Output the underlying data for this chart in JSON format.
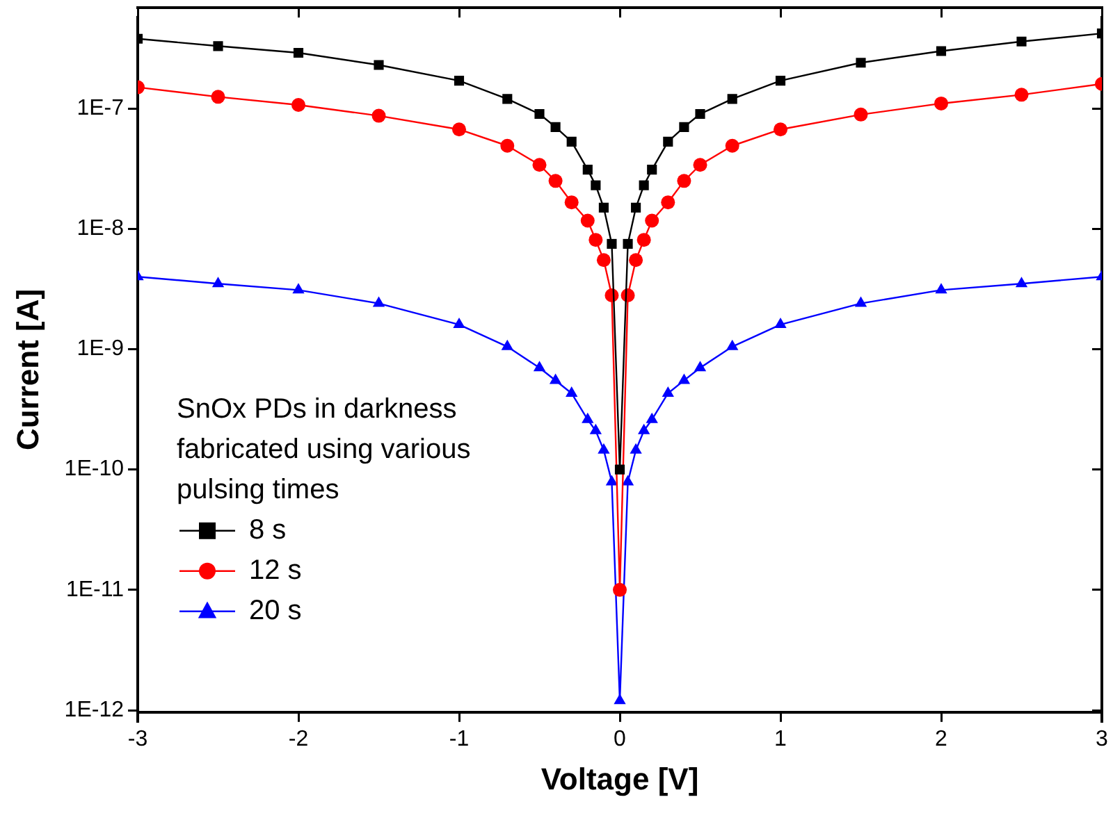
{
  "chart_data": {
    "type": "line",
    "xlabel": "Voltage [V]",
    "ylabel": "Current [A]",
    "legend_title": "SnOx PDs in darkness fabricated using various pulsing times",
    "legend": "bottom left",
    "log": "y",
    "grid": false,
    "line_style": "solid",
    "x": [
      -3,
      -2.5,
      -2,
      -1.5,
      -1,
      -0.7,
      -0.5,
      -0.4,
      -0.3,
      -0.2,
      -0.15,
      -0.1,
      -0.05,
      0,
      0.05,
      0.1,
      0.15,
      0.2,
      0.3,
      0.4,
      0.5,
      0.7,
      1,
      1.5,
      2,
      2.5,
      3
    ],
    "xlim": [
      -3,
      3
    ],
    "xticks": [
      -3,
      -2,
      -1,
      0,
      1,
      2,
      3
    ],
    "ylim": [
      8e-13,
      5.7e-07
    ],
    "yticks": [
      {
        "value": 1e-12,
        "label": "1E-12"
      },
      {
        "value": 1e-11,
        "label": "1E-11"
      },
      {
        "value": 1e-10,
        "label": "1E-10"
      },
      {
        "value": 1e-09,
        "label": "1E-9"
      },
      {
        "value": 1e-08,
        "label": "1E-8"
      },
      {
        "value": 1e-07,
        "label": "1E-7"
      }
    ],
    "series": [
      {
        "name": "8 s",
        "color": "#000000",
        "marker": "square",
        "values": [
          3.8e-07,
          3.3e-07,
          2.9e-07,
          2.3e-07,
          1.7e-07,
          1.2e-07,
          9e-08,
          7e-08,
          5.3e-08,
          3.1e-08,
          2.3e-08,
          1.5e-08,
          7.5e-09,
          1e-10,
          7.5e-09,
          1.5e-08,
          2.3e-08,
          3.1e-08,
          5.3e-08,
          7e-08,
          9e-08,
          1.2e-07,
          1.7e-07,
          2.4e-07,
          3e-07,
          3.6e-07,
          4.2e-07
        ]
      },
      {
        "name": "12 s",
        "color": "#ff0000",
        "marker": "circle",
        "values": [
          1.5e-07,
          1.25e-07,
          1.07e-07,
          8.7e-08,
          6.7e-08,
          4.9e-08,
          3.4e-08,
          2.5e-08,
          1.66e-08,
          1.17e-08,
          8.1e-09,
          5.5e-09,
          2.8e-09,
          1e-11,
          2.8e-09,
          5.5e-09,
          8.1e-09,
          1.17e-08,
          1.66e-08,
          2.5e-08,
          3.4e-08,
          4.9e-08,
          6.7e-08,
          8.9e-08,
          1.1e-07,
          1.3e-07,
          1.6e-07
        ]
      },
      {
        "name": "20 s",
        "color": "#0000ff",
        "marker": "triangle",
        "values": [
          4e-09,
          3.5e-09,
          3.1e-09,
          2.4e-09,
          1.6e-09,
          1.05e-09,
          7e-10,
          5.5e-10,
          4.3e-10,
          2.6e-10,
          2.1e-10,
          1.45e-10,
          7.9e-11,
          1.2e-12,
          7.9e-11,
          1.45e-10,
          2.1e-10,
          2.6e-10,
          4.3e-10,
          5.5e-10,
          7e-10,
          1.05e-09,
          1.6e-09,
          2.4e-09,
          3.1e-09,
          3.5e-09,
          4e-09
        ]
      }
    ]
  }
}
